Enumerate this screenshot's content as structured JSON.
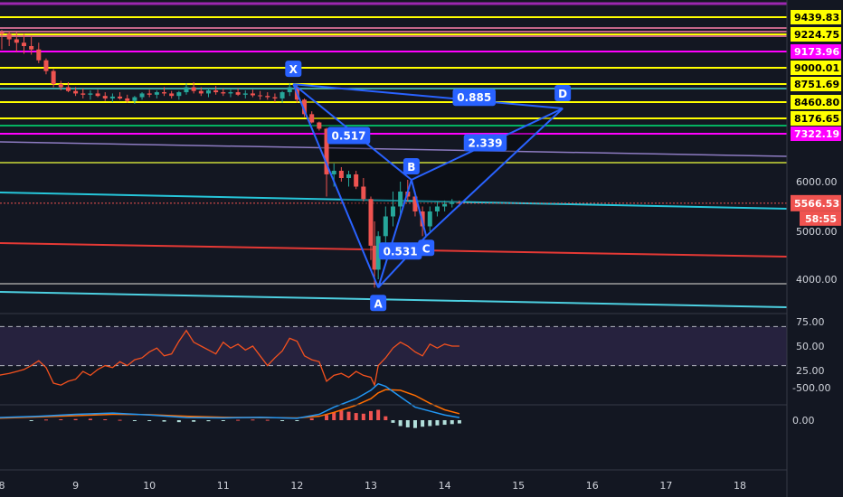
{
  "chart_data": {
    "type": "candlestick",
    "x_ticks": [
      "8",
      "9",
      "10",
      "11",
      "12",
      "13",
      "14",
      "15",
      "16",
      "17",
      "18"
    ],
    "price_pane": {
      "y_ticks": [
        "6000.00",
        "5000.00",
        "4000.00"
      ],
      "y_tick_values": [
        6000,
        5000,
        4000
      ],
      "horizontal_levels": [
        {
          "label": "9439.83",
          "value": 9439.83,
          "color": "#ffff00",
          "bg": "#ffff00",
          "fg": "#000000"
        },
        {
          "label": "9224.75",
          "value": 9224.75,
          "color": "#ffff00",
          "bg": "#ffff00",
          "fg": "#000000"
        },
        {
          "label": "9173.96",
          "value": 9173.96,
          "color": "#ff00ff",
          "bg": "#ff00ff",
          "fg": "#ffffff"
        },
        {
          "label": "9000.01",
          "value": 9000.01,
          "color": "#ffff00",
          "bg": "#ffff00",
          "fg": "#000000"
        },
        {
          "label": "8751.69",
          "value": 8751.69,
          "color": "#ffff00",
          "bg": "#ffff00",
          "fg": "#000000"
        },
        {
          "label": "8460.80",
          "value": 8460.8,
          "color": "#ffff00",
          "bg": "#ffff00",
          "fg": "#000000"
        },
        {
          "label": "8176.65",
          "value": 8176.65,
          "color": "#ffff00",
          "bg": "#ffff00",
          "fg": "#000000"
        },
        {
          "label": "7322.19",
          "value": 7322.19,
          "color": "#ff00ff",
          "bg": "#ff00ff",
          "fg": "#ffffff"
        }
      ],
      "current_price": {
        "label": "5566.53",
        "value": 5566.53,
        "color": "#ef5350"
      },
      "countdown": {
        "label": "58:55"
      },
      "harmonic_pattern": {
        "points": [
          {
            "name": "X",
            "day": 11.95,
            "price": 8750
          },
          {
            "name": "A",
            "day": 13.1,
            "price": 3850
          },
          {
            "name": "B",
            "day": 13.55,
            "price": 6050
          },
          {
            "name": "C",
            "day": 13.75,
            "price": 4900
          },
          {
            "name": "D",
            "day": 15.6,
            "price": 8350
          }
        ],
        "ratios": [
          {
            "label": "0.885",
            "day": 14.4,
            "price": 8530
          },
          {
            "label": "0.517",
            "day": 12.7,
            "price": 7260
          },
          {
            "label": "2.339",
            "day": 14.55,
            "price": 7060
          },
          {
            "label": "0.531",
            "day": 13.4,
            "price": 4580
          }
        ]
      },
      "candles": [
        [
          8.0,
          9250,
          9280,
          9180,
          9230
        ],
        [
          8.1,
          9230,
          9260,
          9190,
          9210
        ],
        [
          8.2,
          9210,
          9250,
          9170,
          9200
        ],
        [
          8.3,
          9200,
          9230,
          9150,
          9190
        ],
        [
          8.4,
          9190,
          9220,
          9140,
          9180
        ],
        [
          8.5,
          9180,
          9200,
          9050,
          9080
        ],
        [
          8.6,
          9080,
          9100,
          8900,
          8950
        ],
        [
          8.7,
          8950,
          8980,
          8700,
          8750
        ],
        [
          8.8,
          8750,
          8800,
          8650,
          8700
        ],
        [
          8.9,
          8700,
          8780,
          8620,
          8640
        ],
        [
          9.0,
          8640,
          8700,
          8560,
          8600
        ],
        [
          9.1,
          8600,
          8680,
          8520,
          8580
        ],
        [
          9.2,
          8580,
          8650,
          8500,
          8600
        ],
        [
          9.3,
          8600,
          8660,
          8540,
          8560
        ],
        [
          9.4,
          8560,
          8620,
          8480,
          8520
        ],
        [
          9.5,
          8520,
          8600,
          8460,
          8550
        ],
        [
          9.6,
          8550,
          8620,
          8500,
          8520
        ],
        [
          9.7,
          8520,
          8580,
          8450,
          8480
        ],
        [
          9.8,
          8480,
          8560,
          8430,
          8540
        ],
        [
          9.9,
          8540,
          8620,
          8500,
          8600
        ],
        [
          10.0,
          8600,
          8660,
          8540,
          8580
        ],
        [
          10.1,
          8580,
          8650,
          8520,
          8620
        ],
        [
          10.2,
          8620,
          8700,
          8560,
          8600
        ],
        [
          10.3,
          8600,
          8640,
          8520,
          8560
        ],
        [
          10.4,
          8560,
          8640,
          8500,
          8620
        ],
        [
          10.5,
          8620,
          8760,
          8580,
          8700
        ],
        [
          10.6,
          8700,
          8780,
          8600,
          8640
        ],
        [
          10.7,
          8640,
          8700,
          8560,
          8600
        ],
        [
          10.8,
          8600,
          8680,
          8540,
          8650
        ],
        [
          10.9,
          8650,
          8720,
          8580,
          8620
        ],
        [
          11.0,
          8620,
          8680,
          8560,
          8600
        ],
        [
          11.1,
          8600,
          8660,
          8540,
          8620
        ],
        [
          11.2,
          8620,
          8680,
          8560,
          8580
        ],
        [
          11.3,
          8580,
          8650,
          8520,
          8600
        ],
        [
          11.4,
          8600,
          8660,
          8540,
          8570
        ],
        [
          11.5,
          8570,
          8640,
          8500,
          8560
        ],
        [
          11.6,
          8560,
          8620,
          8500,
          8540
        ],
        [
          11.7,
          8540,
          8600,
          8460,
          8520
        ],
        [
          11.8,
          8520,
          8640,
          8450,
          8620
        ],
        [
          11.9,
          8620,
          8760,
          8560,
          8700
        ],
        [
          12.0,
          8700,
          8750,
          8450,
          8500
        ],
        [
          12.1,
          8500,
          8520,
          8200,
          8250
        ],
        [
          12.2,
          8250,
          8300,
          7900,
          7950
        ],
        [
          12.3,
          7950,
          8000,
          7500,
          7600
        ],
        [
          12.4,
          7600,
          7650,
          5700,
          6200
        ],
        [
          12.5,
          6200,
          6500,
          5900,
          6300
        ],
        [
          12.6,
          6300,
          6400,
          6000,
          6100
        ],
        [
          12.7,
          6100,
          6300,
          5900,
          6200
        ],
        [
          12.8,
          6200,
          6300,
          5850,
          5900
        ],
        [
          12.9,
          5900,
          6100,
          5600,
          5650
        ],
        [
          13.0,
          5650,
          5700,
          4400,
          4700
        ],
        [
          13.05,
          4700,
          5200,
          3850,
          4200
        ],
        [
          13.1,
          4200,
          5000,
          4000,
          4900
        ],
        [
          13.2,
          4900,
          5500,
          4600,
          5300
        ],
        [
          13.3,
          5300,
          5800,
          5100,
          5500
        ],
        [
          13.4,
          5500,
          6000,
          5300,
          5800
        ],
        [
          13.5,
          5800,
          6050,
          5600,
          5700
        ],
        [
          13.6,
          5700,
          5800,
          5300,
          5400
        ],
        [
          13.7,
          5400,
          5500,
          4900,
          5100
        ],
        [
          13.8,
          5100,
          5500,
          5000,
          5400
        ],
        [
          13.9,
          5400,
          5600,
          5300,
          5500
        ],
        [
          14.0,
          5500,
          5620,
          5400,
          5550
        ],
        [
          14.1,
          5550,
          5650,
          5480,
          5580
        ],
        [
          14.2,
          5580,
          5620,
          5500,
          5566
        ]
      ]
    },
    "rsi_pane": {
      "y_ticks": [
        "75.00",
        "50.00",
        "25.00"
      ],
      "y_tick_values": [
        75,
        50,
        25
      ],
      "bands": [
        70,
        30
      ],
      "values": [
        [
          7.95,
          20
        ],
        [
          8.1,
          22
        ],
        [
          8.2,
          24
        ],
        [
          8.3,
          26
        ],
        [
          8.4,
          30
        ],
        [
          8.5,
          35
        ],
        [
          8.6,
          28
        ],
        [
          8.7,
          12
        ],
        [
          8.8,
          10
        ],
        [
          8.9,
          14
        ],
        [
          9.0,
          16
        ],
        [
          9.1,
          24
        ],
        [
          9.2,
          20
        ],
        [
          9.3,
          26
        ],
        [
          9.4,
          30
        ],
        [
          9.5,
          28
        ],
        [
          9.6,
          34
        ],
        [
          9.7,
          30
        ],
        [
          9.8,
          36
        ],
        [
          9.9,
          38
        ],
        [
          10.0,
          44
        ],
        [
          10.1,
          48
        ],
        [
          10.2,
          40
        ],
        [
          10.3,
          42
        ],
        [
          10.4,
          55
        ],
        [
          10.5,
          66
        ],
        [
          10.6,
          54
        ],
        [
          10.7,
          50
        ],
        [
          10.8,
          46
        ],
        [
          10.9,
          42
        ],
        [
          11.0,
          54
        ],
        [
          11.1,
          48
        ],
        [
          11.2,
          52
        ],
        [
          11.3,
          46
        ],
        [
          11.4,
          50
        ],
        [
          11.5,
          40
        ],
        [
          11.6,
          30
        ],
        [
          11.7,
          38
        ],
        [
          11.8,
          45
        ],
        [
          11.9,
          58
        ],
        [
          12.0,
          55
        ],
        [
          12.1,
          40
        ],
        [
          12.2,
          36
        ],
        [
          12.3,
          34
        ],
        [
          12.4,
          14
        ],
        [
          12.5,
          20
        ],
        [
          12.6,
          22
        ],
        [
          12.7,
          18
        ],
        [
          12.8,
          24
        ],
        [
          12.9,
          20
        ],
        [
          13.0,
          18
        ],
        [
          13.05,
          10
        ],
        [
          13.1,
          30
        ],
        [
          13.2,
          38
        ],
        [
          13.3,
          48
        ],
        [
          13.4,
          54
        ],
        [
          13.5,
          50
        ],
        [
          13.6,
          44
        ],
        [
          13.7,
          40
        ],
        [
          13.8,
          52
        ],
        [
          13.9,
          48
        ],
        [
          14.0,
          52
        ],
        [
          14.1,
          50
        ],
        [
          14.2,
          50
        ]
      ]
    },
    "macd_pane": {
      "y_ticks": [
        "0.00",
        "-500.00"
      ],
      "y_tick_values": [
        0,
        -500
      ],
      "macd_line": [
        [
          7.95,
          -40
        ],
        [
          8.5,
          -60
        ],
        [
          9.0,
          -90
        ],
        [
          9.5,
          -110
        ],
        [
          10.0,
          -80
        ],
        [
          10.5,
          -40
        ],
        [
          11.0,
          -35
        ],
        [
          11.5,
          -45
        ],
        [
          12.0,
          -30
        ],
        [
          12.3,
          -90
        ],
        [
          12.5,
          -200
        ],
        [
          12.8,
          -330
        ],
        [
          13.0,
          -460
        ],
        [
          13.1,
          -560
        ],
        [
          13.2,
          -520
        ],
        [
          13.4,
          -360
        ],
        [
          13.6,
          -200
        ],
        [
          13.8,
          -140
        ],
        [
          14.0,
          -80
        ],
        [
          14.2,
          -40
        ]
      ],
      "signal_line": [
        [
          7.95,
          -30
        ],
        [
          8.5,
          -50
        ],
        [
          9.0,
          -70
        ],
        [
          9.5,
          -90
        ],
        [
          10.0,
          -85
        ],
        [
          10.5,
          -60
        ],
        [
          11.0,
          -45
        ],
        [
          11.5,
          -40
        ],
        [
          12.0,
          -35
        ],
        [
          12.3,
          -60
        ],
        [
          12.5,
          -120
        ],
        [
          12.8,
          -230
        ],
        [
          13.0,
          -330
        ],
        [
          13.1,
          -420
        ],
        [
          13.2,
          -470
        ],
        [
          13.4,
          -460
        ],
        [
          13.6,
          -380
        ],
        [
          13.8,
          -260
        ],
        [
          14.0,
          -160
        ],
        [
          14.2,
          -100
        ]
      ],
      "histogram": [
        [
          8.4,
          8
        ],
        [
          8.6,
          -10
        ],
        [
          8.8,
          -14
        ],
        [
          9.0,
          -18
        ],
        [
          9.2,
          -22
        ],
        [
          9.4,
          -14
        ],
        [
          9.6,
          -6
        ],
        [
          9.8,
          8
        ],
        [
          10.0,
          14
        ],
        [
          10.2,
          22
        ],
        [
          10.4,
          30
        ],
        [
          10.6,
          24
        ],
        [
          10.8,
          16
        ],
        [
          11.0,
          8
        ],
        [
          11.2,
          -6
        ],
        [
          11.4,
          -10
        ],
        [
          11.6,
          -6
        ],
        [
          11.8,
          10
        ],
        [
          12.0,
          14
        ],
        [
          12.2,
          -30
        ],
        [
          12.4,
          -80
        ],
        [
          12.5,
          -120
        ],
        [
          12.6,
          -150
        ],
        [
          12.7,
          -130
        ],
        [
          12.8,
          -110
        ],
        [
          12.9,
          -100
        ],
        [
          13.0,
          -140
        ],
        [
          13.1,
          -160
        ],
        [
          13.2,
          -60
        ],
        [
          13.3,
          40
        ],
        [
          13.4,
          90
        ],
        [
          13.5,
          110
        ],
        [
          13.6,
          120
        ],
        [
          13.7,
          100
        ],
        [
          13.8,
          90
        ],
        [
          13.9,
          80
        ],
        [
          14.0,
          70
        ],
        [
          14.1,
          60
        ],
        [
          14.2,
          50
        ]
      ]
    }
  }
}
